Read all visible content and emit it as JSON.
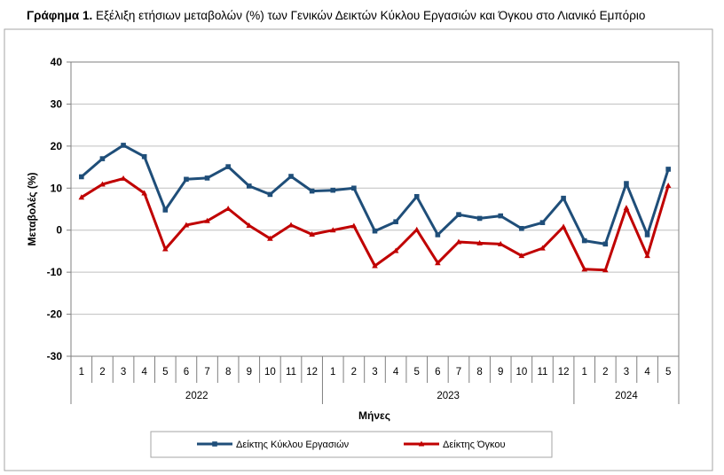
{
  "title": {
    "prefix": "Γράφημα 1.",
    "text": " Εξέλιξη ετήσιων μεταβολών (%) των Γενικών Δεικτών Κύκλου Εργασιών και Όγκου στο Λιανικό Εμπόριο"
  },
  "chart_data": {
    "type": "line",
    "title": "Εξέλιξη ετήσιων μεταβολών (%) των Γενικών Δεικτών Κύκλου Εργασιών και Όγκου στο Λιανικό Εμπόριο",
    "xlabel": "Μήνες",
    "ylabel": "Μεταβολές (%)",
    "ylim": [
      -30,
      40
    ],
    "yticks": [
      -30,
      -20,
      -10,
      0,
      10,
      20,
      30,
      40
    ],
    "grid": true,
    "legend": "bottom",
    "categories": [
      "1",
      "2",
      "3",
      "4",
      "5",
      "6",
      "7",
      "8",
      "9",
      "10",
      "11",
      "12",
      "1",
      "2",
      "3",
      "4",
      "5",
      "6",
      "7",
      "8",
      "9",
      "10",
      "11",
      "12",
      "1",
      "2",
      "3",
      "4",
      "5"
    ],
    "year_groups": [
      {
        "label": "2022",
        "count": 12
      },
      {
        "label": "2023",
        "count": 12
      },
      {
        "label": "2024",
        "count": 5
      }
    ],
    "series": [
      {
        "name": "Δείκτης Κύκλου Εργασιών",
        "color": "#1f4e79",
        "marker": "square",
        "values": [
          12.7,
          17.0,
          20.2,
          17.5,
          4.8,
          12.1,
          12.4,
          15.1,
          10.5,
          8.5,
          12.8,
          9.3,
          9.5,
          10.0,
          -0.2,
          2.0,
          8.0,
          -1.1,
          3.7,
          2.8,
          3.4,
          0.4,
          1.8,
          7.6,
          -2.5,
          -3.3,
          11.1,
          -1.1,
          14.5
        ]
      },
      {
        "name": "Δείκτης Όγκου",
        "color": "#c00000",
        "marker": "triangle",
        "values": [
          7.8,
          10.9,
          12.3,
          8.8,
          -4.5,
          1.2,
          2.2,
          5.1,
          1.1,
          -2.0,
          1.2,
          -1.0,
          0.0,
          1.0,
          -8.5,
          -4.9,
          0.1,
          -7.8,
          -2.8,
          -3.1,
          -3.3,
          -6.1,
          -4.3,
          0.8,
          -9.3,
          -9.5,
          5.3,
          -6.1,
          10.6
        ]
      }
    ]
  }
}
